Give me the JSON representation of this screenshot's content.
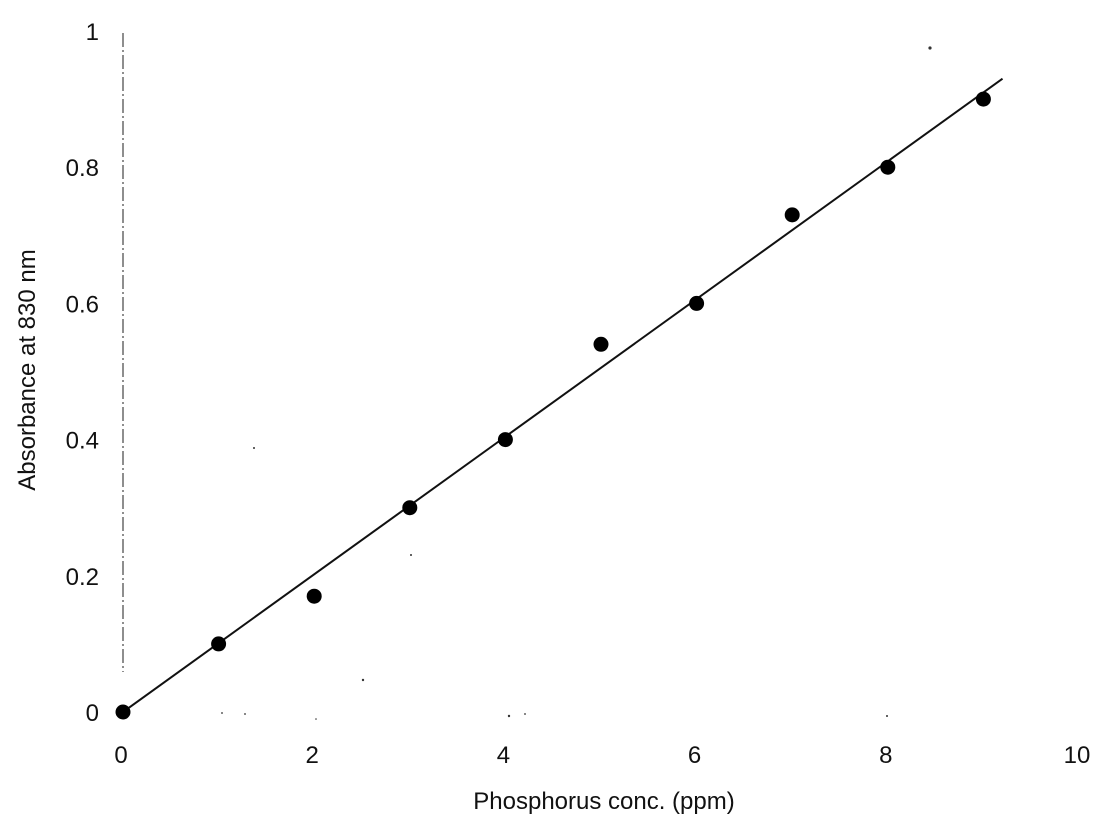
{
  "chart_data": {
    "type": "scatter",
    "title": "",
    "xlabel": "Phosphorus conc. (ppm)",
    "ylabel": "Absorbance at 830 nm",
    "xlim": [
      0,
      10
    ],
    "ylim": [
      0,
      1
    ],
    "x_ticks": [
      0,
      2,
      4,
      6,
      8,
      10
    ],
    "y_ticks": [
      0,
      0.2,
      0.4,
      0.6,
      0.8,
      1
    ],
    "x_tick_labels": [
      "0",
      "2",
      "4",
      "6",
      "8",
      "10"
    ],
    "y_tick_labels": [
      "0",
      "0.2",
      "0.4",
      "0.6",
      "0.8",
      "1"
    ],
    "grid": false,
    "legend": "none",
    "series": [
      {
        "type": "scatter",
        "marker": "filled-circle",
        "color": "#000000",
        "x": [
          0,
          1,
          2,
          3,
          4,
          5,
          6,
          7,
          8,
          9
        ],
        "y": [
          0.0,
          0.1,
          0.17,
          0.3,
          0.4,
          0.54,
          0.6,
          0.73,
          0.8,
          0.9
        ]
      },
      {
        "type": "line",
        "role": "linear-fit",
        "color": "#111111",
        "x": [
          0,
          9.2
        ],
        "y": [
          0.0,
          0.93
        ]
      }
    ]
  }
}
